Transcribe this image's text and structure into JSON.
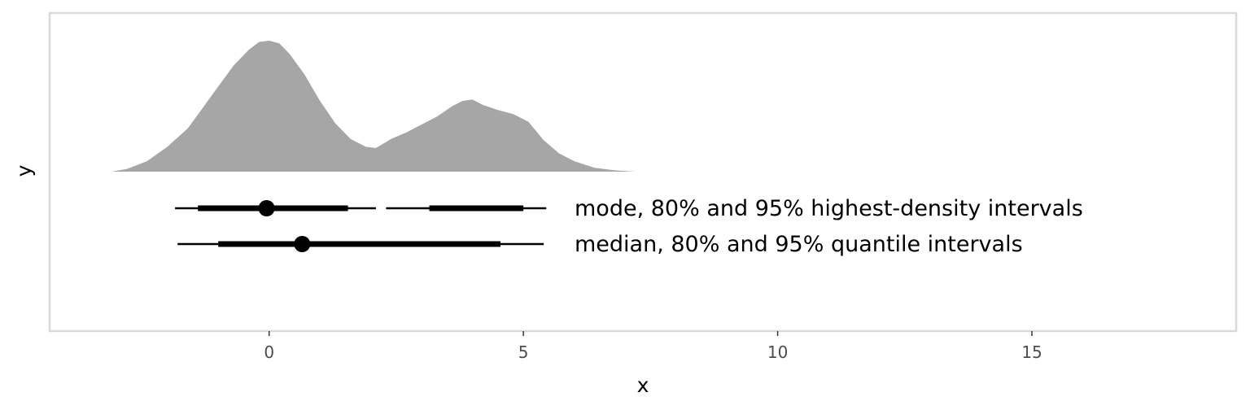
{
  "chart_data": {
    "type": "interval",
    "title": "",
    "xlabel": "x",
    "ylabel": "y",
    "xlim": [
      -4.3,
      19.0
    ],
    "x_ticks": [
      0,
      5,
      10,
      15
    ],
    "x_tick_labels": [
      "0",
      "5",
      "10",
      "15"
    ],
    "grid": false,
    "panel_border": true,
    "density": {
      "fill": "#a6a6a6",
      "x": [
        -3.1,
        -2.8,
        -2.4,
        -2.0,
        -1.6,
        -1.3,
        -1.0,
        -0.7,
        -0.4,
        -0.2,
        0.0,
        0.2,
        0.4,
        0.7,
        1.0,
        1.3,
        1.6,
        1.9,
        2.1,
        2.4,
        2.7,
        3.0,
        3.3,
        3.6,
        3.8,
        4.0,
        4.2,
        4.5,
        4.8,
        5.1,
        5.4,
        5.7,
        6.0,
        6.4,
        6.8,
        7.2,
        7.8
      ],
      "y": [
        0.0,
        0.02,
        0.08,
        0.19,
        0.33,
        0.49,
        0.65,
        0.81,
        0.93,
        0.99,
        1.0,
        0.98,
        0.9,
        0.74,
        0.54,
        0.37,
        0.25,
        0.19,
        0.18,
        0.25,
        0.3,
        0.36,
        0.42,
        0.5,
        0.54,
        0.55,
        0.51,
        0.47,
        0.44,
        0.38,
        0.24,
        0.14,
        0.08,
        0.03,
        0.01,
        0.0,
        0.0
      ]
    },
    "series": [
      {
        "name": "mode, 80% and 95% highest-density intervals",
        "point": -0.05,
        "outer_intervals": [
          [
            -1.85,
            2.1
          ],
          [
            2.3,
            5.45
          ]
        ],
        "inner_intervals": [
          [
            -1.4,
            1.55
          ],
          [
            3.15,
            5.0
          ]
        ]
      },
      {
        "name": "median, 80% and 95% quantile intervals",
        "point": 0.65,
        "outer_intervals": [
          [
            -1.8,
            5.4
          ]
        ],
        "inner_intervals": [
          [
            -1.0,
            4.55
          ]
        ]
      }
    ]
  }
}
